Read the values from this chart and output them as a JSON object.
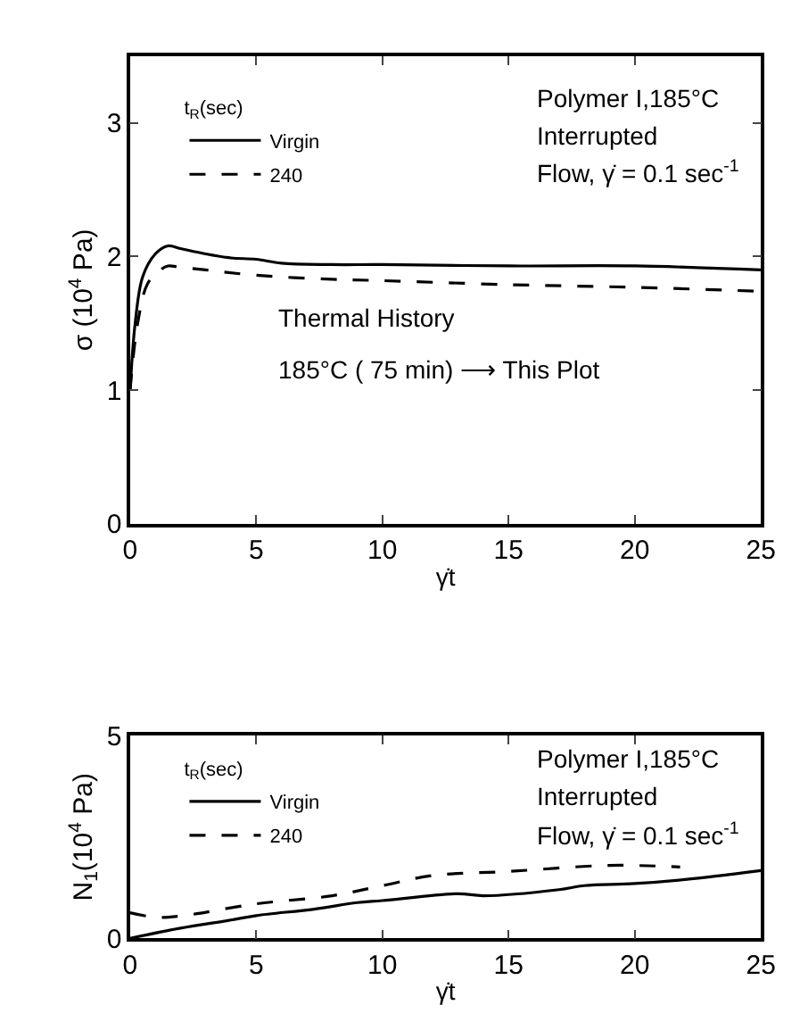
{
  "chart_data": [
    {
      "type": "line",
      "xlabel": "γ̇t",
      "ylabel": "σ (10$^{4}$ Pa)",
      "legend_title": "t$_{R}$(sec)",
      "legend": "top left",
      "marker": "none",
      "xlim": [
        0,
        25
      ],
      "xticks": [
        0,
        5,
        10,
        15,
        20,
        25
      ],
      "ylim": [
        0,
        3.5
      ],
      "yticks": [
        0,
        1,
        2,
        3
      ],
      "annotations": [
        "Polymer I,185°C",
        "Interrupted",
        "Flow, γ̇ = 0.1 sec$^{-1}$",
        "Thermal History",
        "185°C ( 75 min) ⟶ This Plot"
      ],
      "series": [
        {
          "name": "Virgin",
          "color": "#000000",
          "line_style": "solid",
          "x": [
            0,
            0.2,
            0.5,
            1,
            1.5,
            2,
            3,
            4,
            5,
            6,
            8,
            10,
            15,
            20,
            25
          ],
          "values": [
            1.0,
            1.5,
            1.85,
            2.02,
            2.08,
            2.06,
            2.02,
            1.99,
            1.98,
            1.95,
            1.94,
            1.94,
            1.93,
            1.93,
            1.9
          ]
        },
        {
          "name": "240",
          "color": "#000000",
          "line_style": "dashed",
          "x": [
            0,
            0.3,
            0.7,
            1.2,
            1.5,
            2,
            3,
            5,
            8,
            10,
            15,
            20,
            25
          ],
          "values": [
            1.0,
            1.5,
            1.8,
            1.9,
            1.93,
            1.92,
            1.9,
            1.86,
            1.83,
            1.82,
            1.79,
            1.77,
            1.74
          ]
        }
      ]
    },
    {
      "type": "line",
      "xlabel": "γ̇t",
      "ylabel": "N$_{1}$(10$^{4}$ Pa)",
      "legend_title": "t$_{R}$(sec)",
      "legend": "top left",
      "marker": "none",
      "xlim": [
        0,
        25
      ],
      "xticks": [
        0,
        5,
        10,
        15,
        20,
        25
      ],
      "ylim": [
        0,
        5
      ],
      "yticks": [
        0,
        5
      ],
      "annotations": [
        "Polymer I,185°C",
        "Interrupted",
        "Flow, γ̇ = 0.1 sec$^{-1}$"
      ],
      "series": [
        {
          "name": "Virgin",
          "color": "#000000",
          "line_style": "solid",
          "x": [
            0,
            2,
            4,
            5,
            7.3,
            9,
            10,
            13,
            14,
            17,
            18,
            20,
            22,
            25
          ],
          "values": [
            0,
            0.25,
            0.45,
            0.56,
            0.72,
            0.88,
            0.93,
            1.1,
            1.05,
            1.2,
            1.3,
            1.35,
            1.45,
            1.67
          ]
        },
        {
          "name": "240",
          "color": "#000000",
          "line_style": "dashed",
          "x": [
            0,
            1,
            2,
            5,
            8,
            10,
            12,
            15,
            19,
            21.8
          ],
          "values": [
            0.63,
            0.52,
            0.55,
            0.85,
            1.05,
            1.3,
            1.55,
            1.65,
            1.8,
            1.76
          ]
        }
      ]
    }
  ]
}
